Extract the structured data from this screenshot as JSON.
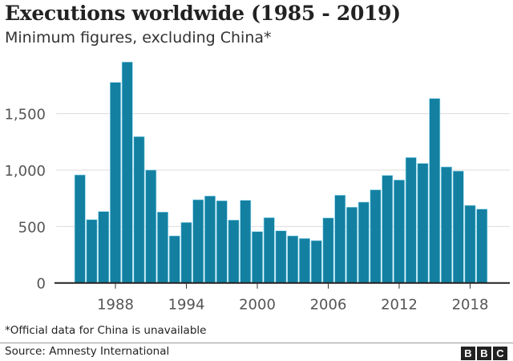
{
  "header": {
    "title": "Executions worldwide (1985 - 2019)",
    "subtitle": "Minimum figures, excluding China*"
  },
  "footer": {
    "note": "*Official data for China is unavailable",
    "source": "Source: Amnesty International",
    "logo": "BBC"
  },
  "chart_data": {
    "type": "bar",
    "title": "Executions worldwide (1985 - 2019)",
    "subtitle": "Minimum figures, excluding China*",
    "xlabel": "",
    "ylabel": "",
    "x": [
      1985,
      1986,
      1987,
      1988,
      1989,
      1990,
      1991,
      1992,
      1993,
      1994,
      1995,
      1996,
      1997,
      1998,
      1999,
      2000,
      2001,
      2002,
      2003,
      2004,
      2005,
      2006,
      2007,
      2008,
      2009,
      2010,
      2011,
      2012,
      2013,
      2014,
      2015,
      2016,
      2017,
      2018,
      2019
    ],
    "values": [
      957,
      561,
      633,
      1777,
      1957,
      1296,
      1000,
      628,
      417,
      536,
      737,
      770,
      728,
      557,
      732,
      455,
      578,
      462,
      417,
      394,
      375,
      576,
      777,
      671,
      716,
      825,
      953,
      912,
      1111,
      1059,
      1634,
      1028,
      991,
      687,
      654
    ],
    "xticks": [
      "1988",
      "1994",
      "2000",
      "2006",
      "2012",
      "2018"
    ],
    "yticks": [
      "0",
      "500",
      "1,000",
      "1,500"
    ],
    "ylim": [
      0,
      2000
    ],
    "grid": true,
    "bar_color": "#1380a1"
  }
}
